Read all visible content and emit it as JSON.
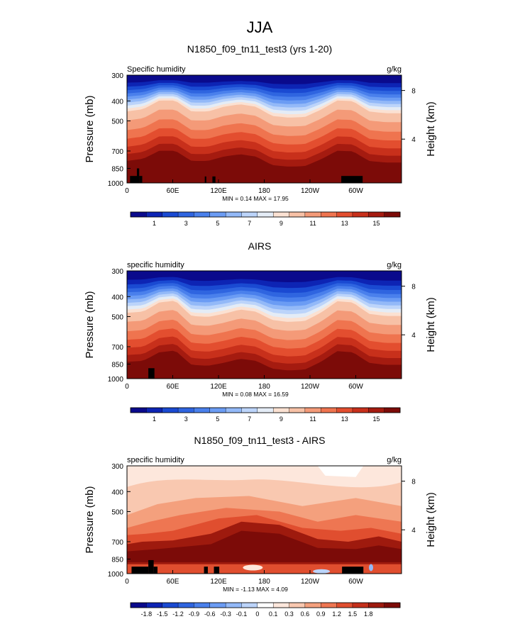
{
  "figure_title": "JJA",
  "chart_data": [
    {
      "type": "heatmap",
      "title": "N1850_f09_tn11_test3 (yrs 1-20)",
      "variable_label": "Specific humidity",
      "units": "g/kg",
      "ylabel_left": "Pressure (mb)",
      "ylabel_right": "Height (km)",
      "x_ticks": [
        "0",
        "60E",
        "120E",
        "180",
        "120W",
        "60W"
      ],
      "x_tick_longitudes": [
        0,
        60,
        120,
        180,
        240,
        300
      ],
      "xlim": [
        0,
        360
      ],
      "y_ticks": [
        "300",
        "400",
        "500",
        "700",
        "850",
        "1000"
      ],
      "y_tick_pressures": [
        300,
        400,
        500,
        700,
        850,
        1000
      ],
      "ylim": [
        1000,
        300
      ],
      "right_ticks": [
        "4",
        "8"
      ],
      "right_tick_pressures": [
        613,
        356
      ],
      "stats_text": "MIN =  0.14  MAX =  17.95",
      "min": 0.14,
      "max": 17.95,
      "colorbar_labels": [
        "1",
        "3",
        "5",
        "7",
        "9",
        "11",
        "13",
        "15"
      ],
      "colorbar_levels": [
        1,
        3,
        5,
        7,
        9,
        11,
        13,
        15
      ],
      "mode": "sequential"
    },
    {
      "type": "heatmap",
      "title": "AIRS",
      "variable_label": "specific humidity",
      "units": "g/kg",
      "ylabel_left": "Pressure (mb)",
      "ylabel_right": "Height (km)",
      "x_ticks": [
        "0",
        "60E",
        "120E",
        "180",
        "120W",
        "60W"
      ],
      "x_tick_longitudes": [
        0,
        60,
        120,
        180,
        240,
        300
      ],
      "xlim": [
        0,
        360
      ],
      "y_ticks": [
        "300",
        "400",
        "500",
        "700",
        "850",
        "1000"
      ],
      "y_tick_pressures": [
        300,
        400,
        500,
        700,
        850,
        1000
      ],
      "ylim": [
        1000,
        300
      ],
      "right_ticks": [
        "4",
        "8"
      ],
      "right_tick_pressures": [
        613,
        356
      ],
      "stats_text": "MIN =  0.08  MAX =  16.59",
      "min": 0.08,
      "max": 16.59,
      "colorbar_labels": [
        "1",
        "3",
        "5",
        "7",
        "9",
        "11",
        "13",
        "15"
      ],
      "colorbar_levels": [
        1,
        3,
        5,
        7,
        9,
        11,
        13,
        15
      ],
      "mode": "sequential"
    },
    {
      "type": "heatmap",
      "title": "N1850_f09_tn11_test3 - AIRS",
      "variable_label": "specific humidity",
      "units": "g/kg",
      "ylabel_left": "Pressure (mb)",
      "ylabel_right": "Height (km)",
      "x_ticks": [
        "0",
        "60E",
        "120E",
        "180",
        "120W",
        "60W"
      ],
      "x_tick_longitudes": [
        0,
        60,
        120,
        180,
        240,
        300
      ],
      "xlim": [
        0,
        360
      ],
      "y_ticks": [
        "300",
        "400",
        "500",
        "700",
        "850",
        "1000"
      ],
      "y_tick_pressures": [
        300,
        400,
        500,
        700,
        850,
        1000
      ],
      "ylim": [
        1000,
        300
      ],
      "right_ticks": [
        "4",
        "8"
      ],
      "right_tick_pressures": [
        613,
        356
      ],
      "stats_text": "MIN = -1.13  MAX =  4.09",
      "min": -1.13,
      "max": 4.09,
      "colorbar_labels": [
        "-1.8",
        "-1.5",
        "-1.2",
        "-0.9",
        "-0.6",
        "-0.3",
        "-0.1",
        "0",
        "0.1",
        "0.3",
        "0.6",
        "0.9",
        "1.2",
        "1.5",
        "1.8"
      ],
      "colorbar_levels": [
        -1.8,
        -1.5,
        -1.2,
        -0.9,
        -0.6,
        -0.3,
        -0.1,
        0,
        0.1,
        0.3,
        0.6,
        0.9,
        1.2,
        1.5,
        1.8
      ],
      "mode": "difference"
    }
  ],
  "colors": {
    "sequential": [
      "#0a0a8c",
      "#0d24b4",
      "#1a4ad2",
      "#2f65e0",
      "#4a80ec",
      "#6b9cf4",
      "#93b9f8",
      "#bcd4fa",
      "#e4ecf6",
      "#fbe1d2",
      "#f7c1a6",
      "#f49a78",
      "#ef744f",
      "#e34e2f",
      "#c8301b",
      "#a51b10",
      "#7c0b08"
    ],
    "difference": [
      "#0a0a8c",
      "#0d24b4",
      "#1a4ad2",
      "#2f65e0",
      "#4a80ec",
      "#6b9cf4",
      "#93b9f8",
      "#bcd4fa",
      "#ffffff",
      "#fde7dc",
      "#f9c8b0",
      "#f4a07d",
      "#ee7652",
      "#e04e2f",
      "#c4301b",
      "#9e1a0e",
      "#7c0b08"
    ],
    "terrain": "#000000"
  }
}
